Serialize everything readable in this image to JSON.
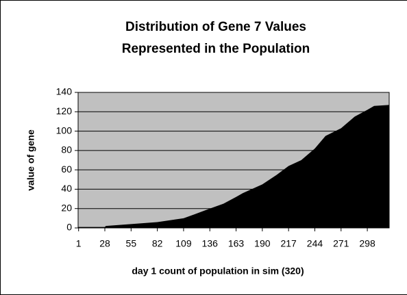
{
  "chart_data": {
    "type": "area",
    "title": [
      "Distribution of Gene 7 Values",
      "Represented in the Population"
    ],
    "x_label": "day 1 count of population in sim (320)",
    "y_label": "value of gene",
    "x": [
      1,
      28,
      29,
      55,
      82,
      109,
      120,
      136,
      150,
      163,
      170,
      190,
      205,
      217,
      230,
      244,
      255,
      271,
      285,
      298,
      305,
      320
    ],
    "series": [
      {
        "name": "gene 7",
        "color": "#000000",
        "values": [
          1,
          1,
          2,
          4,
          6,
          10,
          14,
          20,
          25,
          32,
          36,
          45,
          55,
          64,
          70,
          82,
          95,
          103,
          115,
          122,
          126,
          127
        ]
      }
    ],
    "xlim": [
      0.5,
      320.5
    ],
    "xticks": [
      1,
      28,
      55,
      82,
      109,
      136,
      163,
      190,
      217,
      244,
      271,
      298
    ],
    "ylim": [
      0,
      140
    ],
    "yticks": [
      0,
      20,
      40,
      60,
      80,
      100,
      120,
      140
    ],
    "grid": true,
    "plot_background": "#c0c0c0"
  }
}
